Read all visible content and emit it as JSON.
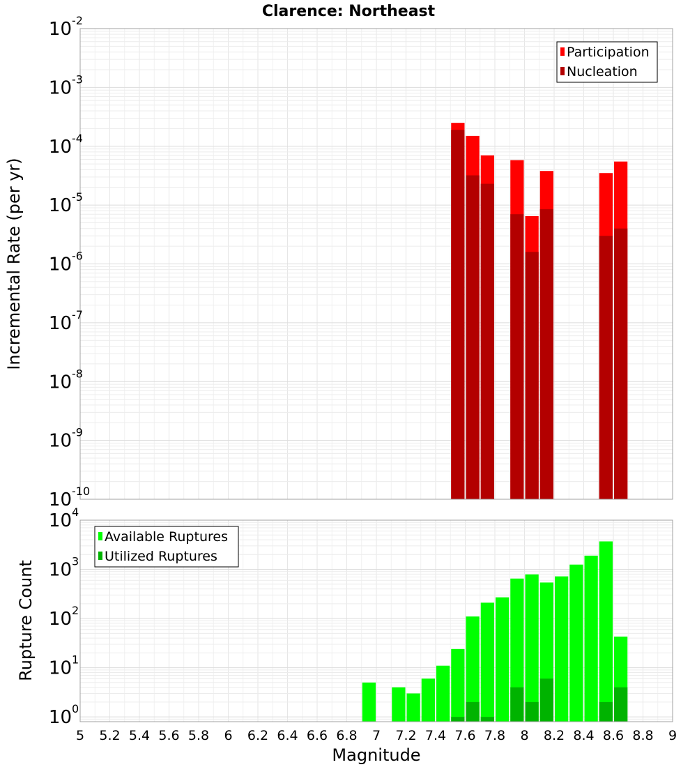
{
  "title": "Clarence: Northeast",
  "chart_data": [
    {
      "type": "bar",
      "ylabel": "Incremental Rate (per yr)",
      "xlabel": "Magnitude",
      "yscale": "log",
      "ylim": [
        1e-10,
        0.01
      ],
      "xlim": [
        5,
        9
      ],
      "grid": true,
      "legend_position": "top-right",
      "y_ticks": [
        {
          "base": "10",
          "exp": "-10",
          "value": -10
        },
        {
          "base": "10",
          "exp": "-9",
          "value": -9
        },
        {
          "base": "10",
          "exp": "-8",
          "value": -8
        },
        {
          "base": "10",
          "exp": "-7",
          "value": -7
        },
        {
          "base": "10",
          "exp": "-6",
          "value": -6
        },
        {
          "base": "10",
          "exp": "-5",
          "value": -5
        },
        {
          "base": "10",
          "exp": "-4",
          "value": -4
        },
        {
          "base": "10",
          "exp": "-3",
          "value": -3
        },
        {
          "base": "10",
          "exp": "-2",
          "value": -2
        }
      ],
      "series": [
        {
          "name": "Participation",
          "color": "#ff0000",
          "points": [
            {
              "x": 7.55,
              "y": 0.00025
            },
            {
              "x": 7.65,
              "y": 0.00015
            },
            {
              "x": 7.75,
              "y": 7e-05
            },
            {
              "x": 7.95,
              "y": 5.8e-05
            },
            {
              "x": 8.05,
              "y": 6.5e-06
            },
            {
              "x": 8.15,
              "y": 3.8e-05
            },
            {
              "x": 8.55,
              "y": 3.5e-05
            },
            {
              "x": 8.65,
              "y": 5.5e-05
            }
          ]
        },
        {
          "name": "Nucleation",
          "color": "#b30000",
          "points": [
            {
              "x": 7.55,
              "y": 0.00019
            },
            {
              "x": 7.65,
              "y": 3.2e-05
            },
            {
              "x": 7.75,
              "y": 2.3e-05
            },
            {
              "x": 7.95,
              "y": 7e-06
            },
            {
              "x": 8.05,
              "y": 1.6e-06
            },
            {
              "x": 8.15,
              "y": 8.5e-06
            },
            {
              "x": 8.55,
              "y": 3e-06
            },
            {
              "x": 8.65,
              "y": 4e-06
            }
          ]
        }
      ]
    },
    {
      "type": "bar",
      "ylabel": "Rupture Count",
      "xlabel": "Magnitude",
      "yscale": "log",
      "ylim": [
        0.8,
        10000
      ],
      "xlim": [
        5,
        9
      ],
      "grid": true,
      "legend_position": "top-left",
      "x_ticks": [
        "5",
        "5.2",
        "5.4",
        "5.6",
        "5.8",
        "6",
        "6.2",
        "6.4",
        "6.6",
        "6.8",
        "7",
        "7.2",
        "7.4",
        "7.6",
        "7.8",
        "8",
        "8.2",
        "8.4",
        "8.6",
        "8.8",
        "9"
      ],
      "y_ticks": [
        {
          "base": "10",
          "exp": "0",
          "value": 1
        },
        {
          "base": "10",
          "exp": "1",
          "value": 10
        },
        {
          "base": "10",
          "exp": "2",
          "value": 100
        },
        {
          "base": "10",
          "exp": "3",
          "value": 1000
        },
        {
          "base": "10",
          "exp": "4",
          "value": 10000
        }
      ],
      "series": [
        {
          "name": "Available Ruptures",
          "color": "#00ff00",
          "points": [
            {
              "x": 6.95,
              "y": 5
            },
            {
              "x": 7.15,
              "y": 4
            },
            {
              "x": 7.25,
              "y": 3
            },
            {
              "x": 7.35,
              "y": 6
            },
            {
              "x": 7.45,
              "y": 11
            },
            {
              "x": 7.55,
              "y": 24
            },
            {
              "x": 7.65,
              "y": 110
            },
            {
              "x": 7.75,
              "y": 210
            },
            {
              "x": 7.85,
              "y": 270
            },
            {
              "x": 7.95,
              "y": 650
            },
            {
              "x": 8.05,
              "y": 790
            },
            {
              "x": 8.15,
              "y": 540
            },
            {
              "x": 8.25,
              "y": 720
            },
            {
              "x": 8.35,
              "y": 1250
            },
            {
              "x": 8.45,
              "y": 1900
            },
            {
              "x": 8.55,
              "y": 3700
            },
            {
              "x": 8.65,
              "y": 43
            }
          ]
        },
        {
          "name": "Utilized Ruptures",
          "color": "#00b300",
          "points": [
            {
              "x": 7.55,
              "y": 1
            },
            {
              "x": 7.65,
              "y": 2
            },
            {
              "x": 7.75,
              "y": 1
            },
            {
              "x": 7.95,
              "y": 4
            },
            {
              "x": 8.05,
              "y": 2
            },
            {
              "x": 8.15,
              "y": 6
            },
            {
              "x": 8.55,
              "y": 2
            },
            {
              "x": 8.65,
              "y": 4
            }
          ]
        }
      ]
    }
  ]
}
